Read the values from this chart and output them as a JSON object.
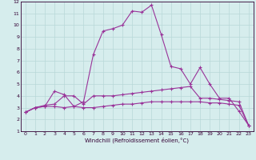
{
  "title": "",
  "xlabel": "Windchill (Refroidissement éolien,°C)",
  "xlim": [
    -0.5,
    23.5
  ],
  "ylim": [
    1,
    12
  ],
  "xticks": [
    0,
    1,
    2,
    3,
    4,
    5,
    6,
    7,
    8,
    9,
    10,
    11,
    12,
    13,
    14,
    15,
    16,
    17,
    18,
    19,
    20,
    21,
    22,
    23
  ],
  "yticks": [
    1,
    2,
    3,
    4,
    5,
    6,
    7,
    8,
    9,
    10,
    11,
    12
  ],
  "background_color": "#d6eded",
  "line_color": "#993399",
  "grid_color": "#b8d8d8",
  "tick_color": "#330033",
  "tick_fontsize": 4.5,
  "xlabel_fontsize": 5.0,
  "lines": [
    {
      "x": [
        0,
        1,
        2,
        3,
        4,
        5,
        6,
        7,
        8,
        9,
        10,
        11,
        12,
        13,
        14,
        15,
        16,
        17,
        18,
        19,
        20,
        21,
        22,
        23
      ],
      "y": [
        2.6,
        3.0,
        3.1,
        3.1,
        3.0,
        3.1,
        3.0,
        3.0,
        3.1,
        3.2,
        3.3,
        3.3,
        3.4,
        3.5,
        3.5,
        3.5,
        3.5,
        3.5,
        3.5,
        3.4,
        3.4,
        3.3,
        3.2,
        1.5
      ]
    },
    {
      "x": [
        0,
        1,
        2,
        3,
        4,
        5,
        6,
        7,
        8,
        9,
        10,
        11,
        12,
        13,
        14,
        15,
        16,
        17,
        18,
        19,
        20,
        21,
        22,
        23
      ],
      "y": [
        2.6,
        3.0,
        3.2,
        3.3,
        4.0,
        4.0,
        3.3,
        4.0,
        4.0,
        4.0,
        4.1,
        4.2,
        4.3,
        4.4,
        4.5,
        4.6,
        4.7,
        4.8,
        3.8,
        3.8,
        3.7,
        3.6,
        3.5,
        1.5
      ]
    },
    {
      "x": [
        0,
        1,
        2,
        3,
        4,
        5,
        6,
        7,
        8,
        9,
        10,
        11,
        12,
        13,
        14,
        15,
        16,
        17,
        18,
        19,
        20,
        21,
        22,
        23
      ],
      "y": [
        2.6,
        3.0,
        3.1,
        4.4,
        4.1,
        3.1,
        3.5,
        7.5,
        9.5,
        9.7,
        10.0,
        11.2,
        11.1,
        11.7,
        9.2,
        6.5,
        6.3,
        5.0,
        6.4,
        5.0,
        3.8,
        3.8,
        2.7,
        1.5
      ]
    }
  ]
}
